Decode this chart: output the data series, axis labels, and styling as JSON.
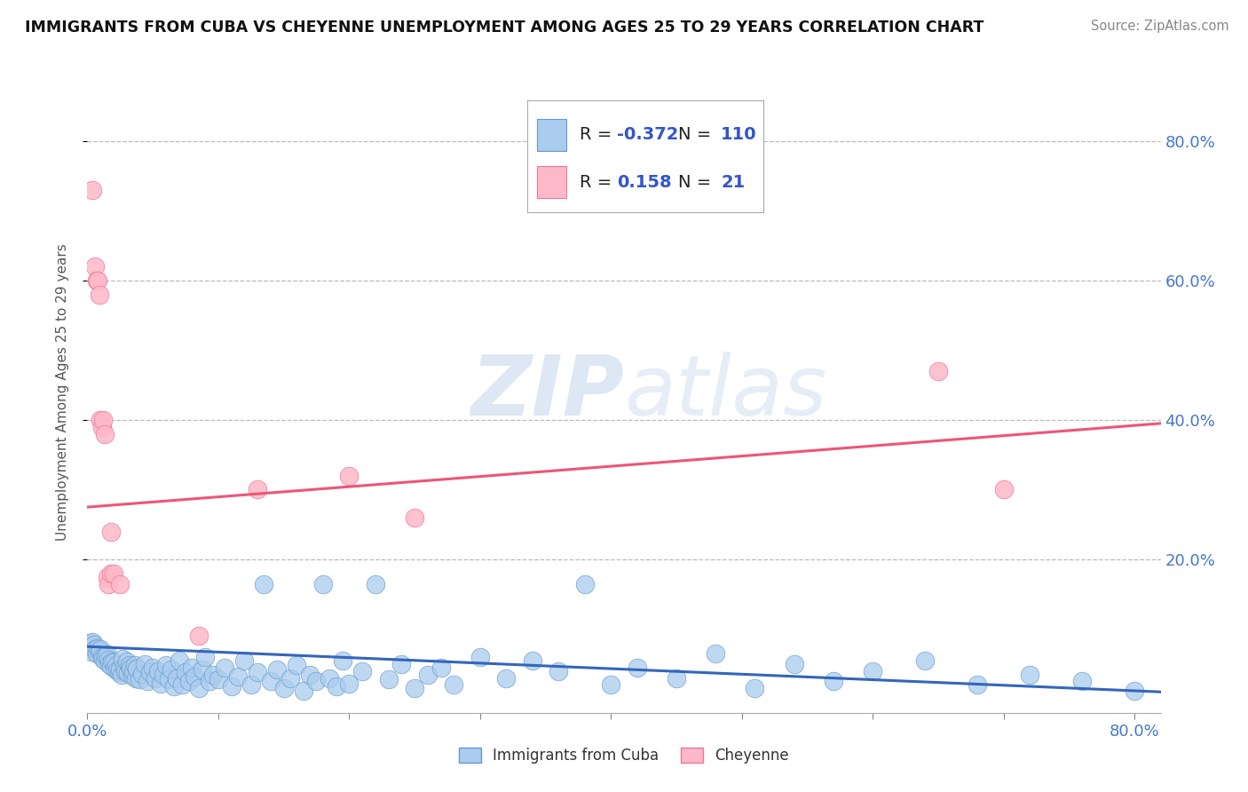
{
  "title": "IMMIGRANTS FROM CUBA VS CHEYENNE UNEMPLOYMENT AMONG AGES 25 TO 29 YEARS CORRELATION CHART",
  "source": "Source: ZipAtlas.com",
  "ylabel": "Unemployment Among Ages 25 to 29 years",
  "xlim": [
    0.0,
    0.82
  ],
  "ylim": [
    -0.02,
    0.9
  ],
  "ytick_positions": [
    0.2,
    0.4,
    0.6,
    0.8
  ],
  "ytick_labels": [
    "20.0%",
    "40.0%",
    "60.0%",
    "80.0%"
  ],
  "grid_color": "#bbbbbb",
  "background_color": "#ffffff",
  "watermark_zip": "ZIP",
  "watermark_atlas": "atlas",
  "series": [
    {
      "name": "Immigrants from Cuba",
      "color": "#aaccee",
      "edge_color": "#6699cc",
      "R": -0.372,
      "N": 110,
      "trend_color": "#3366bb",
      "trend_start_x": 0.0,
      "trend_start_y": 0.075,
      "trend_end_x": 0.82,
      "trend_end_y": 0.01
    },
    {
      "name": "Cheyenne",
      "color": "#ffb8c8",
      "edge_color": "#ee7799",
      "R": 0.158,
      "N": 21,
      "trend_color": "#ee5577",
      "trend_start_x": 0.0,
      "trend_start_y": 0.275,
      "trend_end_x": 0.82,
      "trend_end_y": 0.395
    }
  ],
  "cuba_points": [
    [
      0.001,
      0.075
    ],
    [
      0.002,
      0.08
    ],
    [
      0.003,
      0.068
    ],
    [
      0.004,
      0.082
    ],
    [
      0.005,
      0.078
    ],
    [
      0.006,
      0.072
    ],
    [
      0.007,
      0.065
    ],
    [
      0.008,
      0.073
    ],
    [
      0.009,
      0.069
    ],
    [
      0.01,
      0.071
    ],
    [
      0.011,
      0.06
    ],
    [
      0.012,
      0.058
    ],
    [
      0.013,
      0.055
    ],
    [
      0.014,
      0.062
    ],
    [
      0.015,
      0.064
    ],
    [
      0.016,
      0.056
    ],
    [
      0.017,
      0.05
    ],
    [
      0.018,
      0.047
    ],
    [
      0.019,
      0.054
    ],
    [
      0.02,
      0.052
    ],
    [
      0.021,
      0.044
    ],
    [
      0.022,
      0.048
    ],
    [
      0.023,
      0.041
    ],
    [
      0.024,
      0.038
    ],
    [
      0.025,
      0.042
    ],
    [
      0.026,
      0.035
    ],
    [
      0.027,
      0.058
    ],
    [
      0.028,
      0.045
    ],
    [
      0.029,
      0.04
    ],
    [
      0.03,
      0.053
    ],
    [
      0.031,
      0.037
    ],
    [
      0.032,
      0.049
    ],
    [
      0.033,
      0.044
    ],
    [
      0.034,
      0.033
    ],
    [
      0.035,
      0.039
    ],
    [
      0.036,
      0.048
    ],
    [
      0.037,
      0.03
    ],
    [
      0.038,
      0.043
    ],
    [
      0.04,
      0.028
    ],
    [
      0.042,
      0.036
    ],
    [
      0.044,
      0.05
    ],
    [
      0.046,
      0.025
    ],
    [
      0.048,
      0.038
    ],
    [
      0.05,
      0.045
    ],
    [
      0.052,
      0.03
    ],
    [
      0.054,
      0.04
    ],
    [
      0.056,
      0.022
    ],
    [
      0.058,
      0.035
    ],
    [
      0.06,
      0.048
    ],
    [
      0.062,
      0.028
    ],
    [
      0.064,
      0.042
    ],
    [
      0.066,
      0.018
    ],
    [
      0.068,
      0.03
    ],
    [
      0.07,
      0.055
    ],
    [
      0.072,
      0.02
    ],
    [
      0.075,
      0.038
    ],
    [
      0.078,
      0.025
    ],
    [
      0.08,
      0.045
    ],
    [
      0.082,
      0.032
    ],
    [
      0.085,
      0.015
    ],
    [
      0.088,
      0.042
    ],
    [
      0.09,
      0.06
    ],
    [
      0.093,
      0.025
    ],
    [
      0.096,
      0.035
    ],
    [
      0.1,
      0.028
    ],
    [
      0.105,
      0.045
    ],
    [
      0.11,
      0.018
    ],
    [
      0.115,
      0.032
    ],
    [
      0.12,
      0.055
    ],
    [
      0.125,
      0.02
    ],
    [
      0.13,
      0.038
    ],
    [
      0.135,
      0.165
    ],
    [
      0.14,
      0.025
    ],
    [
      0.145,
      0.042
    ],
    [
      0.15,
      0.015
    ],
    [
      0.155,
      0.03
    ],
    [
      0.16,
      0.048
    ],
    [
      0.165,
      0.012
    ],
    [
      0.17,
      0.035
    ],
    [
      0.175,
      0.025
    ],
    [
      0.18,
      0.165
    ],
    [
      0.185,
      0.03
    ],
    [
      0.19,
      0.018
    ],
    [
      0.195,
      0.055
    ],
    [
      0.2,
      0.022
    ],
    [
      0.21,
      0.04
    ],
    [
      0.22,
      0.165
    ],
    [
      0.23,
      0.028
    ],
    [
      0.24,
      0.05
    ],
    [
      0.25,
      0.015
    ],
    [
      0.26,
      0.035
    ],
    [
      0.27,
      0.045
    ],
    [
      0.28,
      0.02
    ],
    [
      0.3,
      0.06
    ],
    [
      0.32,
      0.03
    ],
    [
      0.34,
      0.055
    ],
    [
      0.36,
      0.04
    ],
    [
      0.38,
      0.165
    ],
    [
      0.4,
      0.02
    ],
    [
      0.42,
      0.045
    ],
    [
      0.45,
      0.03
    ],
    [
      0.48,
      0.065
    ],
    [
      0.51,
      0.015
    ],
    [
      0.54,
      0.05
    ],
    [
      0.57,
      0.025
    ],
    [
      0.6,
      0.04
    ],
    [
      0.64,
      0.055
    ],
    [
      0.68,
      0.02
    ],
    [
      0.72,
      0.035
    ],
    [
      0.76,
      0.025
    ],
    [
      0.8,
      0.012
    ]
  ],
  "cheyenne_points": [
    [
      0.004,
      0.73
    ],
    [
      0.006,
      0.62
    ],
    [
      0.007,
      0.6
    ],
    [
      0.008,
      0.6
    ],
    [
      0.009,
      0.58
    ],
    [
      0.01,
      0.4
    ],
    [
      0.011,
      0.39
    ],
    [
      0.012,
      0.4
    ],
    [
      0.013,
      0.38
    ],
    [
      0.015,
      0.175
    ],
    [
      0.016,
      0.165
    ],
    [
      0.018,
      0.18
    ],
    [
      0.02,
      0.18
    ],
    [
      0.025,
      0.165
    ],
    [
      0.085,
      0.09
    ],
    [
      0.13,
      0.3
    ],
    [
      0.2,
      0.32
    ],
    [
      0.25,
      0.26
    ],
    [
      0.65,
      0.47
    ],
    [
      0.7,
      0.3
    ],
    [
      0.018,
      0.24
    ]
  ]
}
